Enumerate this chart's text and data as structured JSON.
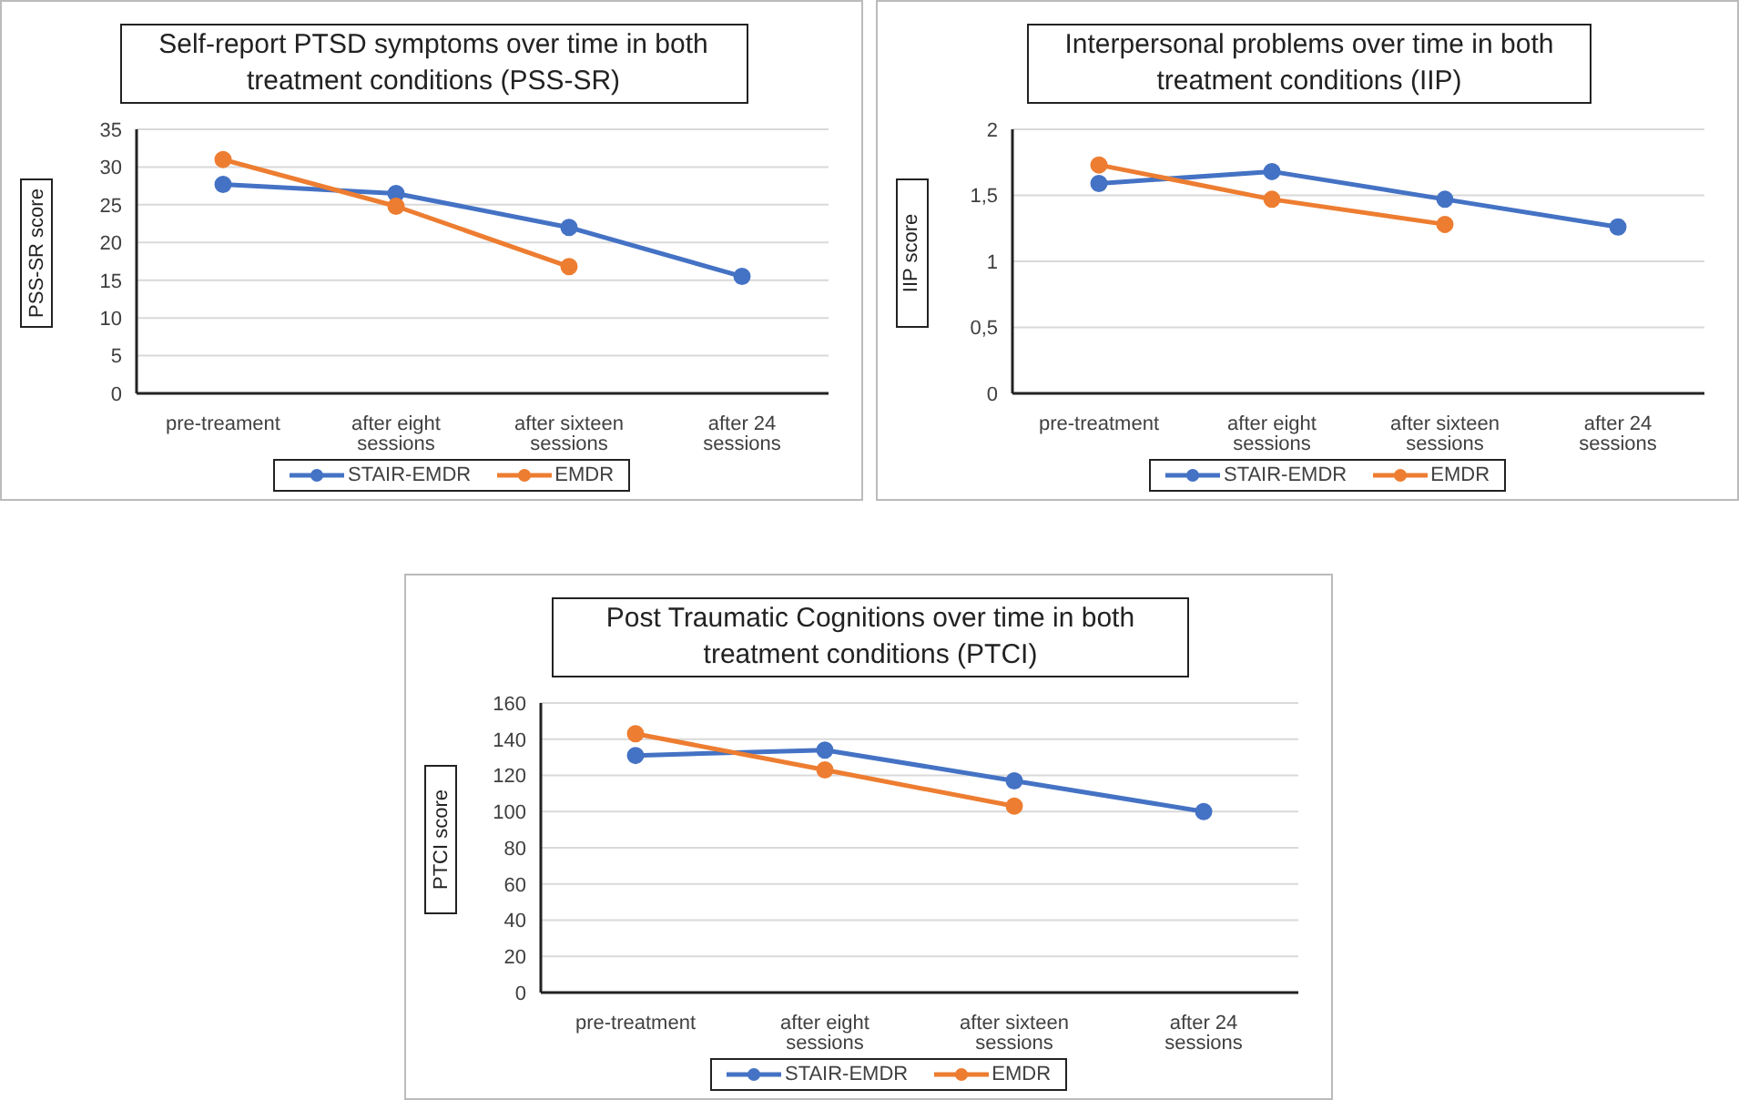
{
  "chart_data": [
    {
      "type": "line",
      "title": "Self-report PTSD symptoms over time in both treatment conditions (PSS-SR)",
      "ylabel": "PSS-SR score",
      "categories": [
        "pre-treament",
        "after eight sessions",
        "after sixteen sessions",
        "after 24 sessions"
      ],
      "series": [
        {
          "name": "STAIR-EMDR",
          "color": "#4472c4",
          "values": [
            27.7,
            26.5,
            22,
            15.5
          ]
        },
        {
          "name": "EMDR",
          "color": "#ed7d31",
          "values": [
            31,
            24.8,
            16.8,
            null
          ]
        }
      ],
      "ylim": [
        0,
        35
      ],
      "yticks": [
        0,
        5,
        10,
        15,
        20,
        25,
        30,
        35
      ],
      "grid": "y",
      "legend": "bottom",
      "marker": "circle",
      "line_style": "solid"
    },
    {
      "type": "line",
      "title": "Interpersonal problems over time in both treatment conditions (IIP)",
      "ylabel": "IIP score",
      "categories": [
        "pre-treatment",
        "after eight sessions",
        "after sixteen sessions",
        "after 24 sessions"
      ],
      "series": [
        {
          "name": "STAIR-EMDR",
          "color": "#4472c4",
          "values": [
            1.59,
            1.68,
            1.47,
            1.26
          ]
        },
        {
          "name": "EMDR",
          "color": "#ed7d31",
          "values": [
            1.73,
            1.47,
            1.28,
            null
          ]
        }
      ],
      "ylim": [
        0,
        2
      ],
      "yticks": [
        0,
        {
          "value": 0.5,
          "label": "0,5"
        },
        1,
        {
          "value": 1.5,
          "label": "1,5"
        },
        2
      ],
      "grid": "y",
      "legend": "bottom",
      "marker": "circle",
      "line_style": "solid"
    },
    {
      "type": "line",
      "title": "Post Traumatic Cognitions over time in both treatment conditions (PTCI)",
      "ylabel": "PTCI score",
      "categories": [
        "pre-treatment",
        "after eight sessions",
        "after sixteen sessions",
        "after 24 sessions"
      ],
      "series": [
        {
          "name": "STAIR-EMDR",
          "color": "#4472c4",
          "values": [
            131,
            134,
            117,
            100
          ]
        },
        {
          "name": "EMDR",
          "color": "#ed7d31",
          "values": [
            143,
            123,
            103,
            null
          ]
        }
      ],
      "ylim": [
        0,
        160
      ],
      "yticks": [
        0,
        20,
        40,
        60,
        80,
        100,
        120,
        140,
        160
      ],
      "grid": "y",
      "legend": "bottom",
      "marker": "circle",
      "line_style": "solid"
    }
  ]
}
